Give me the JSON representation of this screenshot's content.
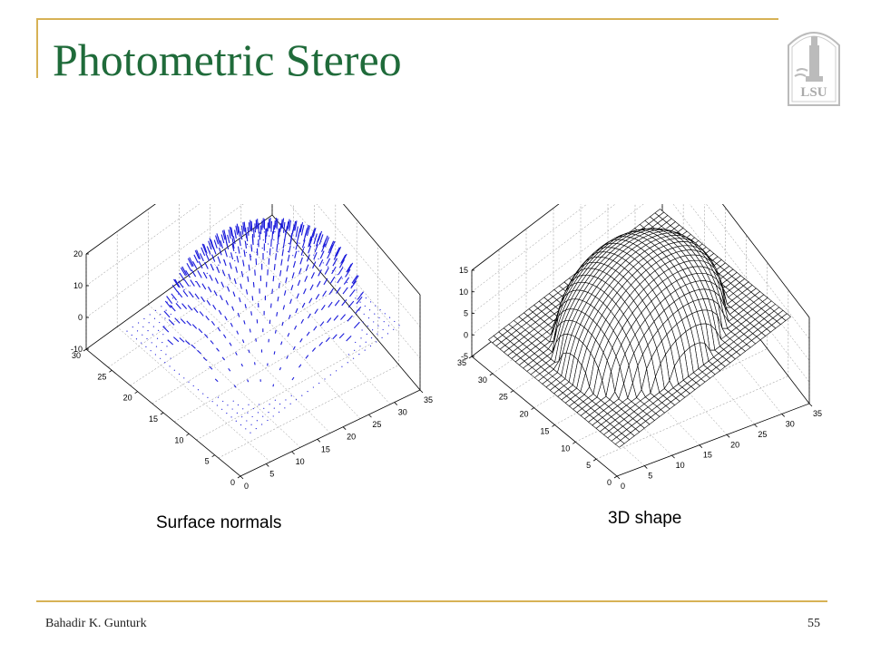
{
  "title": "Photometric Stereo",
  "logo": {
    "text": "LSU"
  },
  "plots": {
    "left": {
      "caption": "Surface normals",
      "z_ticks": [
        "20",
        "10",
        "0",
        "-10"
      ],
      "y_ticks": [
        "30",
        "25",
        "20",
        "15",
        "10",
        "5",
        "0"
      ],
      "x_ticks": [
        "0",
        "5",
        "10",
        "15",
        "20",
        "25",
        "30",
        "35"
      ],
      "arrow_color": "#1a1adb"
    },
    "right": {
      "caption": "3D shape",
      "z_ticks": [
        "15",
        "10",
        "5",
        "0",
        "-5"
      ],
      "y_ticks": [
        "35",
        "30",
        "25",
        "20",
        "15",
        "10",
        "5",
        "0"
      ],
      "x_ticks": [
        "0",
        "5",
        "10",
        "15",
        "20",
        "25",
        "30",
        "35"
      ]
    }
  },
  "footer": {
    "author": "Bahadir K. Gunturk",
    "page": "55"
  },
  "colors": {
    "accent": "#d7b255",
    "title": "#1f6b3a"
  }
}
